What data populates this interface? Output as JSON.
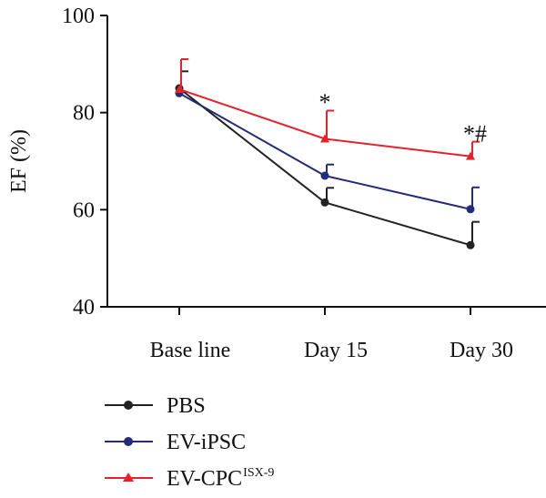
{
  "chart_data": {
    "type": "line",
    "ylabel": "EF (%)",
    "xlabel": "",
    "categories": [
      "Base line",
      "Day 15",
      "Day 30"
    ],
    "ylim": [
      40,
      100
    ],
    "yticks": [
      40,
      60,
      80,
      100
    ],
    "grid": false,
    "legend_position": "bottom-left",
    "series": [
      {
        "name": "PBS",
        "name_sup": "",
        "color": "#222222",
        "marker": "circle",
        "values": [
          85,
          61.5,
          52.7
        ],
        "errors": [
          3.5,
          3.0,
          4.8
        ]
      },
      {
        "name": "EV-iPSC",
        "name_sup": "",
        "color": "#232b7a",
        "marker": "circle",
        "values": [
          84,
          67,
          60.1
        ],
        "errors": [
          0,
          2.3,
          4.5
        ]
      },
      {
        "name": "EV-CPC",
        "name_sup": "ISX-9",
        "color": "#e8202a",
        "marker": "triangle",
        "values": [
          84.8,
          74.6,
          71
        ],
        "errors": [
          6.2,
          5.8,
          3.0
        ]
      }
    ],
    "annotations": [
      {
        "category": "Day 15",
        "y": 80.5,
        "text": "*"
      },
      {
        "category": "Day 30",
        "y": 74.0,
        "text": "*#"
      }
    ]
  }
}
